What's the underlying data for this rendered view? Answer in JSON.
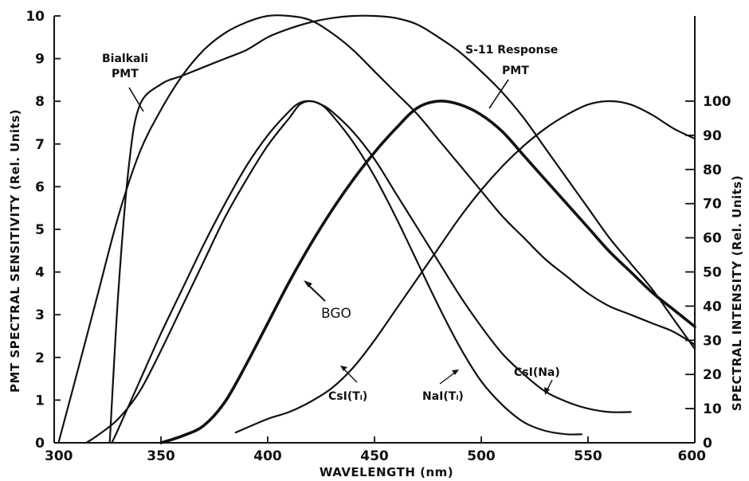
{
  "chart_data": {
    "type": "line",
    "xlabel": "WAVELENGTH (nm)",
    "ylabel_left": "PMT SPECTRAL SENSITIVITY (Rel. Units)",
    "ylabel_right": "SPECTRAL INTENSITY (Rel. Units)",
    "xlim": [
      300,
      600
    ],
    "ylim_left": [
      0,
      10
    ],
    "ylim_right": [
      0,
      100
    ],
    "x_ticks": [
      "300",
      "350",
      "400",
      "450",
      "500",
      "550",
      "600"
    ],
    "y_ticks_left": [
      "0",
      "1",
      "2",
      "3",
      "4",
      "5",
      "6",
      "7",
      "8",
      "9",
      "10"
    ],
    "y_ticks_right": [
      "0",
      "10",
      "20",
      "30",
      "40",
      "50",
      "60",
      "70",
      "80",
      "90",
      "100"
    ],
    "grid": false,
    "series": [
      {
        "key": "bialkali",
        "axis": "left",
        "points": [
          [
            302,
            0
          ],
          [
            310,
            1.5
          ],
          [
            320,
            3.4
          ],
          [
            330,
            5.3
          ],
          [
            340,
            6.8
          ],
          [
            350,
            7.8
          ],
          [
            360,
            8.6
          ],
          [
            370,
            9.2
          ],
          [
            380,
            9.6
          ],
          [
            390,
            9.85
          ],
          [
            400,
            10
          ],
          [
            410,
            10
          ],
          [
            420,
            9.9
          ],
          [
            430,
            9.6
          ],
          [
            440,
            9.2
          ],
          [
            450,
            8.7
          ],
          [
            460,
            8.2
          ],
          [
            470,
            7.7
          ],
          [
            480,
            7.1
          ],
          [
            490,
            6.5
          ],
          [
            500,
            5.9
          ],
          [
            510,
            5.3
          ],
          [
            520,
            4.8
          ],
          [
            530,
            4.3
          ],
          [
            540,
            3.9
          ],
          [
            550,
            3.5
          ],
          [
            560,
            3.2
          ],
          [
            570,
            3.0
          ],
          [
            580,
            2.8
          ],
          [
            590,
            2.6
          ],
          [
            600,
            2.3
          ]
        ]
      },
      {
        "key": "s11",
        "axis": "left",
        "points": [
          [
            326,
            0
          ],
          [
            330,
            3.5
          ],
          [
            335,
            6.5
          ],
          [
            340,
            7.9
          ],
          [
            350,
            8.4
          ],
          [
            360,
            8.6
          ],
          [
            370,
            8.8
          ],
          [
            380,
            9.0
          ],
          [
            390,
            9.2
          ],
          [
            400,
            9.5
          ],
          [
            410,
            9.7
          ],
          [
            420,
            9.85
          ],
          [
            430,
            9.95
          ],
          [
            440,
            10
          ],
          [
            450,
            10
          ],
          [
            460,
            9.95
          ],
          [
            470,
            9.8
          ],
          [
            480,
            9.5
          ],
          [
            490,
            9.15
          ],
          [
            500,
            8.7
          ],
          [
            510,
            8.2
          ],
          [
            520,
            7.6
          ],
          [
            530,
            6.9
          ],
          [
            540,
            6.2
          ],
          [
            550,
            5.5
          ],
          [
            560,
            4.8
          ],
          [
            570,
            4.2
          ],
          [
            580,
            3.6
          ],
          [
            590,
            2.9
          ],
          [
            600,
            2.2
          ]
        ]
      },
      {
        "key": "bgo",
        "axis": "right",
        "points": [
          [
            350,
            0
          ],
          [
            360,
            2
          ],
          [
            370,
            5
          ],
          [
            380,
            12
          ],
          [
            390,
            23
          ],
          [
            400,
            35
          ],
          [
            410,
            47
          ],
          [
            420,
            58
          ],
          [
            430,
            68
          ],
          [
            440,
            77
          ],
          [
            450,
            85
          ],
          [
            460,
            92
          ],
          [
            470,
            98
          ],
          [
            480,
            100
          ],
          [
            490,
            99
          ],
          [
            500,
            96
          ],
          [
            510,
            91
          ],
          [
            520,
            84
          ],
          [
            530,
            77
          ],
          [
            540,
            70
          ],
          [
            550,
            63
          ],
          [
            560,
            56
          ],
          [
            570,
            50
          ],
          [
            580,
            44
          ],
          [
            590,
            39
          ],
          [
            600,
            34
          ]
        ]
      },
      {
        "key": "csi_tl",
        "axis": "right",
        "points": [
          [
            385,
            3
          ],
          [
            400,
            7
          ],
          [
            410,
            9
          ],
          [
            420,
            12
          ],
          [
            430,
            16
          ],
          [
            440,
            22
          ],
          [
            450,
            30
          ],
          [
            460,
            39
          ],
          [
            470,
            48
          ],
          [
            480,
            57
          ],
          [
            490,
            66
          ],
          [
            500,
            74
          ],
          [
            510,
            81
          ],
          [
            520,
            87
          ],
          [
            530,
            92
          ],
          [
            540,
            96
          ],
          [
            550,
            99
          ],
          [
            560,
            100
          ],
          [
            570,
            99
          ],
          [
            580,
            96
          ],
          [
            590,
            92
          ],
          [
            600,
            89
          ]
        ]
      },
      {
        "key": "nai_tl",
        "axis": "right",
        "points": [
          [
            327,
            0
          ],
          [
            330,
            4
          ],
          [
            340,
            18
          ],
          [
            350,
            32
          ],
          [
            360,
            45
          ],
          [
            370,
            58
          ],
          [
            380,
            70
          ],
          [
            390,
            81
          ],
          [
            400,
            90
          ],
          [
            410,
            97
          ],
          [
            415,
            99.5
          ],
          [
            420,
            100
          ],
          [
            425,
            99
          ],
          [
            430,
            96
          ],
          [
            440,
            88
          ],
          [
            450,
            78
          ],
          [
            460,
            66
          ],
          [
            470,
            53
          ],
          [
            480,
            40
          ],
          [
            490,
            28
          ],
          [
            500,
            18
          ],
          [
            510,
            11
          ],
          [
            520,
            6
          ],
          [
            530,
            3.5
          ],
          [
            540,
            2.5
          ],
          [
            547,
            2.5
          ]
        ]
      },
      {
        "key": "csi_na",
        "axis": "right",
        "points": [
          [
            315,
            0
          ],
          [
            320,
            2
          ],
          [
            330,
            7
          ],
          [
            340,
            15
          ],
          [
            350,
            27
          ],
          [
            360,
            40
          ],
          [
            370,
            53
          ],
          [
            380,
            66
          ],
          [
            390,
            77
          ],
          [
            400,
            87
          ],
          [
            410,
            95
          ],
          [
            415,
            99
          ],
          [
            420,
            100
          ],
          [
            425,
            99
          ],
          [
            430,
            97
          ],
          [
            440,
            91
          ],
          [
            450,
            83
          ],
          [
            460,
            73
          ],
          [
            470,
            63
          ],
          [
            480,
            53
          ],
          [
            490,
            43
          ],
          [
            500,
            34
          ],
          [
            510,
            26
          ],
          [
            520,
            20
          ],
          [
            530,
            15
          ],
          [
            540,
            12
          ],
          [
            550,
            10
          ],
          [
            560,
            9
          ],
          [
            570,
            9
          ]
        ]
      }
    ],
    "annotations": {
      "bialkali": [
        "Bialkali",
        "PMT"
      ],
      "s11": [
        "S-11 Response",
        "PMT"
      ],
      "bgo": "BGO",
      "csi_tl": "CsI(Tₗ)",
      "nai_tl": "NaI(Tₗ)",
      "csi_na": "CsI(Na)"
    }
  }
}
